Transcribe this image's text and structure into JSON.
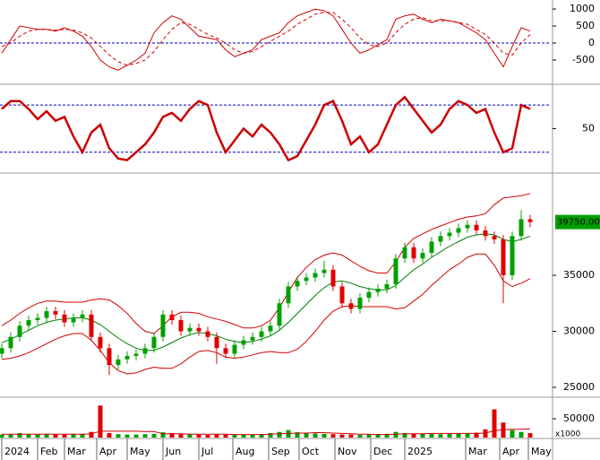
{
  "chart_data": [
    {
      "type": "line",
      "xlim": [
        -0.2,
        61.3
      ],
      "ylim": [
        -1160,
        1160
      ],
      "yticks": [
        1000,
        500,
        0,
        -500
      ],
      "hlines": [
        0
      ],
      "hline_color": "#0000cc",
      "series": [
        {
          "color": "#d00000",
          "dashed": false,
          "values": [
            -300,
            100,
            500,
            450,
            400,
            400,
            350,
            450,
            350,
            200,
            -100,
            -500,
            -700,
            -800,
            -650,
            -500,
            -300,
            300,
            600,
            800,
            700,
            450,
            200,
            150,
            100,
            -200,
            -400,
            -300,
            -200,
            100,
            200,
            300,
            600,
            800,
            900,
            1000,
            950,
            800,
            400,
            0,
            -300,
            -200,
            -50,
            100,
            700,
            800,
            850,
            700,
            600,
            700,
            650,
            600,
            450,
            300,
            100,
            -300,
            -700,
            -100,
            450,
            350
          ]
        },
        {
          "color": "#d00000",
          "dashed": true,
          "values": [
            -100,
            0,
            200,
            350,
            400,
            400,
            380,
            400,
            380,
            300,
            150,
            -100,
            -350,
            -550,
            -650,
            -600,
            -500,
            -250,
            100,
            400,
            600,
            550,
            400,
            250,
            150,
            0,
            -200,
            -300,
            -250,
            -100,
            50,
            200,
            350,
            550,
            700,
            850,
            900,
            900,
            700,
            450,
            150,
            -50,
            -100,
            0,
            300,
            550,
            700,
            750,
            650,
            650,
            650,
            600,
            550,
            400,
            250,
            0,
            -300,
            -350,
            0,
            250
          ]
        }
      ]
    },
    {
      "type": "line",
      "xlim": [
        -0.2,
        61.3
      ],
      "ylim": [
        -3,
        104
      ],
      "yticks": [
        50
      ],
      "hlines": [
        80,
        20
      ],
      "hline_color": "#0000cc",
      "series": [
        {
          "color": "#cc0000",
          "dashed": false,
          "width": 2.5,
          "values": [
            75,
            85,
            85,
            75,
            62,
            72,
            60,
            65,
            40,
            20,
            45,
            55,
            25,
            12,
            10,
            20,
            30,
            45,
            65,
            70,
            60,
            75,
            85,
            80,
            45,
            20,
            35,
            50,
            40,
            55,
            45,
            30,
            10,
            15,
            35,
            55,
            80,
            85,
            60,
            30,
            40,
            20,
            30,
            55,
            80,
            90,
            75,
            60,
            45,
            55,
            75,
            85,
            80,
            70,
            75,
            45,
            20,
            25,
            80,
            75
          ]
        }
      ]
    },
    {
      "type": "candlestick",
      "xlim": [
        -0.2,
        61.3
      ],
      "ylim": [
        24360,
        43880
      ],
      "yticks": [
        25000,
        30000,
        35000
      ],
      "up_color": "#00a000",
      "down_color": "#e00000",
      "open": [
        28000,
        28500,
        29500,
        30500,
        31000,
        31200,
        31800,
        31500,
        30800,
        31200,
        31500,
        29500,
        28500,
        27000,
        27500,
        27800,
        28000,
        28500,
        29500,
        31500,
        31000,
        30000,
        30300,
        30000,
        29500,
        28500,
        28000,
        28800,
        29200,
        29500,
        30000,
        30500,
        32500,
        34000,
        34500,
        34800,
        35200,
        35500,
        34000,
        32500,
        32000,
        33000,
        33500,
        33800,
        34200,
        36500,
        37500,
        36500,
        37000,
        38000,
        38500,
        38800,
        39200,
        39500,
        39000,
        38500,
        38200,
        35000,
        38500,
        40000
      ],
      "high": [
        28900,
        29900,
        30900,
        31400,
        31600,
        32200,
        32200,
        31900,
        31600,
        31900,
        31900,
        29900,
        28900,
        27900,
        28200,
        28400,
        28900,
        29900,
        31900,
        31900,
        31400,
        30700,
        30700,
        30400,
        29900,
        28900,
        29200,
        29600,
        29900,
        30400,
        30900,
        32900,
        34400,
        34900,
        35200,
        35600,
        36300,
        35900,
        34400,
        32900,
        33400,
        33900,
        34200,
        34600,
        36900,
        37900,
        37900,
        37400,
        38400,
        38900,
        39200,
        39600,
        39900,
        39900,
        39400,
        38900,
        38600,
        38900,
        40800,
        40400
      ],
      "low": [
        27600,
        28100,
        29100,
        30100,
        30600,
        30800,
        31100,
        30400,
        30400,
        30800,
        29100,
        28100,
        26100,
        26600,
        27100,
        27400,
        27600,
        28100,
        29100,
        30600,
        29600,
        29600,
        29600,
        29100,
        27100,
        27600,
        27600,
        28400,
        28800,
        29100,
        29600,
        30100,
        32100,
        33600,
        34100,
        34400,
        34800,
        33600,
        32100,
        31600,
        31600,
        32600,
        33100,
        33400,
        33800,
        36100,
        36100,
        36100,
        36600,
        37600,
        38100,
        38400,
        38800,
        38600,
        38100,
        37800,
        32500,
        34600,
        38100,
        39300
      ],
      "close": [
        28500,
        29500,
        30500,
        31000,
        31200,
        31800,
        31500,
        30800,
        31200,
        31500,
        29500,
        28500,
        27000,
        27500,
        27800,
        28000,
        28500,
        29500,
        31500,
        31000,
        30000,
        30300,
        30000,
        29500,
        28500,
        28000,
        28800,
        29200,
        29500,
        30000,
        30500,
        32500,
        34000,
        34500,
        34800,
        35200,
        35500,
        34000,
        32500,
        32000,
        33000,
        33500,
        33800,
        34200,
        36500,
        37500,
        36500,
        37000,
        38000,
        38500,
        38800,
        39200,
        39500,
        39000,
        38500,
        38200,
        35000,
        38500,
        40000,
        39750
      ],
      "series": [
        {
          "color": "#d00000",
          "values": [
            30500,
            31000,
            31600,
            32100,
            32500,
            32700,
            32700,
            32600,
            32600,
            32600,
            32800,
            32900,
            32800,
            32300,
            31600,
            30700,
            30000,
            29800,
            30500,
            31300,
            31700,
            31700,
            31600,
            31300,
            31100,
            30900,
            30600,
            30300,
            30300,
            30500,
            31000,
            32100,
            33500,
            34800,
            35700,
            36400,
            36800,
            37000,
            36800,
            36300,
            35800,
            35400,
            35200,
            35200,
            36200,
            37500,
            38300,
            38700,
            39100,
            39400,
            39700,
            40000,
            40200,
            40300,
            40500,
            41300,
            41900,
            42000,
            42100,
            42300
          ]
        },
        {
          "color": "#008000",
          "values": [
            29000,
            29300,
            29700,
            30100,
            30500,
            30800,
            31000,
            31100,
            31200,
            31200,
            31000,
            30600,
            30000,
            29400,
            28900,
            28500,
            28300,
            28300,
            28600,
            29000,
            29400,
            29700,
            29900,
            29800,
            29600,
            29300,
            29100,
            29000,
            29100,
            29300,
            29600,
            30100,
            30800,
            31600,
            32400,
            33200,
            33900,
            34400,
            34500,
            34300,
            34000,
            33800,
            33700,
            33700,
            34100,
            34800,
            35500,
            36000,
            36600,
            37100,
            37600,
            38000,
            38400,
            38600,
            38700,
            38600,
            38200,
            38000,
            38200,
            38500
          ]
        },
        {
          "color": "#d00000",
          "values": [
            27500,
            27600,
            27800,
            28100,
            28500,
            28900,
            29300,
            29600,
            29800,
            29800,
            29200,
            28300,
            27200,
            26500,
            26200,
            26300,
            26600,
            26800,
            26700,
            26700,
            27100,
            27700,
            28200,
            28300,
            28100,
            27700,
            27600,
            27700,
            27900,
            28100,
            28200,
            28100,
            28100,
            28400,
            29100,
            30000,
            31000,
            31800,
            32200,
            32300,
            32200,
            32200,
            32200,
            32200,
            32000,
            32100,
            32700,
            33300,
            34100,
            34800,
            35500,
            36000,
            36600,
            36900,
            36900,
            35900,
            34500,
            34000,
            34300,
            34700
          ]
        }
      ],
      "last_price": {
        "value": 39750,
        "label": "39750.00"
      }
    },
    {
      "type": "bar",
      "xlim": [
        -0.2,
        61.3
      ],
      "ylim": [
        0,
        100000
      ],
      "yticks": [
        50000
      ],
      "unit_label": "x1000",
      "up_color": "#00a000",
      "down_color": "#e00000",
      "values": [
        8000,
        9000,
        12000,
        9000,
        8000,
        10000,
        9000,
        8000,
        10000,
        9000,
        15000,
        85000,
        12000,
        9000,
        8000,
        8000,
        9000,
        10000,
        14000,
        12000,
        9000,
        8000,
        8000,
        7000,
        9000,
        8000,
        7000,
        7000,
        8000,
        9000,
        12000,
        15000,
        20000,
        14000,
        12000,
        11000,
        10000,
        9000,
        8000,
        8000,
        7000,
        8000,
        9000,
        10000,
        15000,
        12000,
        10000,
        11000,
        10000,
        9000,
        10000,
        12000,
        11000,
        13000,
        22000,
        75000,
        40000,
        20000,
        15000,
        12000
      ],
      "series": [
        {
          "color": "#d00000",
          "values": [
            9000,
            9000,
            9000,
            9000,
            9000,
            9000,
            9000,
            9000,
            9000,
            9000,
            10000,
            17000,
            17000,
            17000,
            17000,
            17000,
            16000,
            16000,
            10000,
            10000,
            10000,
            9000,
            9000,
            9000,
            9000,
            9000,
            8000,
            8000,
            8000,
            8000,
            9000,
            10000,
            11000,
            12000,
            12000,
            13000,
            13000,
            12000,
            11000,
            10000,
            9000,
            9000,
            8000,
            8000,
            9000,
            10000,
            10000,
            10000,
            11000,
            11000,
            11000,
            11000,
            11000,
            11000,
            12000,
            18000,
            21000,
            22000,
            22000,
            23000
          ]
        }
      ],
      "xticks": [
        {
          "value": 0,
          "label": "2024"
        },
        {
          "value": 4,
          "label": "Feb"
        },
        {
          "value": 7,
          "label": "Mar"
        },
        {
          "value": 10.6,
          "label": "Apr"
        },
        {
          "value": 14,
          "label": "May"
        },
        {
          "value": 18,
          "label": "Jun"
        },
        {
          "value": 22,
          "label": "Jul"
        },
        {
          "value": 25.8,
          "label": "Aug"
        },
        {
          "value": 29.8,
          "label": "Sep"
        },
        {
          "value": 33.2,
          "label": "Oct"
        },
        {
          "value": 37.2,
          "label": "Nov"
        },
        {
          "value": 41.2,
          "label": "Dec"
        },
        {
          "value": 45,
          "label": "2025"
        },
        {
          "value": 51.8,
          "label": "Mar"
        },
        {
          "value": 55.6,
          "label": "Apr"
        },
        {
          "value": 58.8,
          "label": "May"
        }
      ]
    }
  ]
}
